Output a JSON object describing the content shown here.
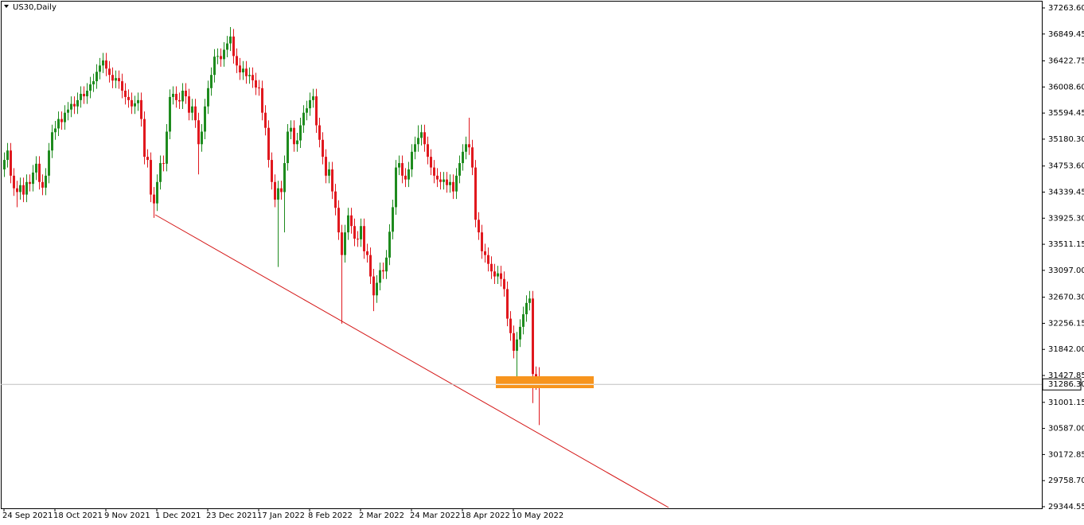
{
  "chart_data": {
    "type": "candlestick",
    "title": "US30,Daily",
    "up_color": "#1e8b1e",
    "down_color": "#e0181e",
    "ylim": [
      29319,
      37377
    ],
    "yticks": [
      {
        "value": 37263.6,
        "label": "37263.60"
      },
      {
        "value": 36849.45,
        "label": "36849.45"
      },
      {
        "value": 36422.75,
        "label": "36422.75"
      },
      {
        "value": 36008.6,
        "label": "36008.60"
      },
      {
        "value": 35594.45,
        "label": "35594.45"
      },
      {
        "value": 35180.3,
        "label": "35180.30"
      },
      {
        "value": 34753.6,
        "label": "34753.60"
      },
      {
        "value": 34339.45,
        "label": "34339.45"
      },
      {
        "value": 33925.3,
        "label": "33925.30"
      },
      {
        "value": 33511.15,
        "label": "33511.15"
      },
      {
        "value": 33097,
        "label": "33097.00"
      },
      {
        "value": 32670.3,
        "label": "32670.30"
      },
      {
        "value": 32256.15,
        "label": "32256.15"
      },
      {
        "value": 31842,
        "label": "31842.00"
      },
      {
        "value": 31427.85,
        "label": "31427.85"
      },
      {
        "value": 31001.15,
        "label": "31001.15"
      },
      {
        "value": 30587,
        "label": "30587.00"
      },
      {
        "value": 30172.85,
        "label": "30172.85"
      },
      {
        "value": 29758.7,
        "label": "29758.70"
      },
      {
        "value": 29344.55,
        "label": "29344.55"
      }
    ],
    "current_price": {
      "value": 31286.3,
      "label": "31286.30"
    },
    "categories": [
      "24 Sep 2021",
      null,
      null,
      null,
      null,
      null,
      null,
      null,
      null,
      null,
      null,
      null,
      null,
      null,
      null,
      null,
      "18 Oct 2021",
      null,
      null,
      null,
      null,
      null,
      null,
      null,
      null,
      null,
      null,
      null,
      null,
      null,
      null,
      null,
      "9 Nov 2021",
      null,
      null,
      null,
      null,
      null,
      null,
      null,
      null,
      null,
      null,
      null,
      null,
      null,
      null,
      null,
      "1 Dec 2021",
      null,
      null,
      null,
      null,
      null,
      null,
      null,
      null,
      null,
      null,
      null,
      null,
      null,
      null,
      null,
      "23 Dec 2021",
      null,
      null,
      null,
      null,
      null,
      null,
      null,
      null,
      null,
      null,
      null,
      null,
      null,
      null,
      null,
      "17 Jan 2022",
      null,
      null,
      null,
      null,
      null,
      null,
      null,
      null,
      null,
      null,
      null,
      null,
      null,
      null,
      null,
      "8 Feb 2022",
      null,
      null,
      null,
      null,
      null,
      null,
      null,
      null,
      null,
      null,
      null,
      null,
      null,
      null,
      null,
      "2 Mar 2022",
      null,
      null,
      null,
      null,
      null,
      null,
      null,
      null,
      null,
      null,
      null,
      null,
      null,
      null,
      null,
      "24 Mar 2022",
      null,
      null,
      null,
      null,
      null,
      null,
      null,
      null,
      null,
      null,
      null,
      null,
      null,
      null,
      null,
      "18 Apr 2022",
      null,
      null,
      null,
      null,
      null,
      null,
      null,
      null,
      null,
      null,
      null,
      null,
      null,
      null,
      null,
      "10 May 2022",
      null,
      null,
      null,
      null,
      null,
      null,
      null,
      null
    ],
    "open": [
      34700,
      34850,
      35000,
      34600,
      34400,
      34340,
      34450,
      34300,
      34500,
      34470,
      34650,
      34790,
      34500,
      34410,
      34600,
      35000,
      35290,
      35350,
      35500,
      35450,
      35600,
      35650,
      35740,
      35700,
      35800,
      35900,
      35860,
      35950,
      36050,
      36100,
      36250,
      36350,
      36430,
      36300,
      36200,
      36110,
      36150,
      36100,
      35950,
      35850,
      35800,
      35700,
      35750,
      35800,
      35500,
      34900,
      34850,
      34300,
      34160,
      34500,
      34800,
      34790,
      35300,
      35850,
      35900,
      35800,
      35780,
      35950,
      35860,
      35600,
      35700,
      35480,
      35100,
      35300,
      35700,
      35990,
      36200,
      36490,
      36500,
      36450,
      36600,
      36700,
      36810,
      36500,
      36350,
      36240,
      36300,
      36180,
      36200,
      36114,
      36000,
      35990,
      35600,
      35360,
      34850,
      34500,
      34220,
      34400,
      34340,
      34800,
      35300,
      35360,
      35100,
      35160,
      35400,
      35600,
      35670,
      35800,
      35860,
      35400,
      35170,
      34900,
      34600,
      34700,
      34350,
      34090,
      33700,
      33340,
      33700,
      33970,
      33800,
      33600,
      33590,
      33800,
      33400,
      33340,
      33000,
      32700,
      32900,
      33100,
      33080,
      33300,
      33710,
      34100,
      34730,
      34800,
      34600,
      34540,
      34700,
      34980,
      35100,
      35200,
      35290,
      35100,
      34900,
      34730,
      34600,
      34540,
      34500,
      34540,
      34450,
      34500,
      34350,
      34600,
      34800,
      34980,
      35100,
      35050,
      34730,
      33900,
      33700,
      33400,
      33340,
      33200,
      33080,
      33000,
      33050,
      32960,
      32800,
      32330,
      32100,
      31820,
      32000,
      32200,
      32400,
      32580,
      32650,
      31450,
      31320
    ],
    "high": [
      34970,
      35120,
      35120,
      34720,
      34520,
      34570,
      34570,
      34620,
      34620,
      34770,
      34910,
      34910,
      34620,
      34720,
      35120,
      35410,
      35470,
      35620,
      35620,
      35720,
      35770,
      35860,
      35860,
      35920,
      36020,
      36020,
      36070,
      36170,
      36220,
      36370,
      36470,
      36550,
      36550,
      36420,
      36320,
      36270,
      36270,
      36220,
      36070,
      35970,
      35920,
      35870,
      35920,
      35920,
      35620,
      35020,
      34970,
      34420,
      34620,
      34920,
      34920,
      35420,
      35970,
      36020,
      36020,
      35920,
      36070,
      36070,
      35980,
      35820,
      35820,
      35600,
      35420,
      35820,
      36110,
      36320,
      36610,
      36620,
      36620,
      36720,
      36820,
      36960,
      36930,
      36620,
      36470,
      36420,
      36420,
      36320,
      36320,
      36234,
      36120,
      36110,
      35720,
      35480,
      34970,
      34620,
      34520,
      34520,
      34920,
      35420,
      35480,
      35480,
      35280,
      35520,
      35720,
      35790,
      35920,
      35980,
      35980,
      35520,
      35290,
      35020,
      34820,
      34820,
      34470,
      34210,
      33820,
      33820,
      34090,
      34090,
      33920,
      33720,
      33920,
      33920,
      33520,
      33460,
      33120,
      33020,
      33220,
      33220,
      33420,
      33830,
      34220,
      34850,
      34920,
      34920,
      34720,
      34820,
      35100,
      35220,
      35400,
      35410,
      35410,
      35220,
      35020,
      34850,
      34720,
      34660,
      34660,
      34660,
      34620,
      34620,
      34720,
      34920,
      35100,
      35220,
      35520,
      35170,
      34850,
      34020,
      33820,
      33520,
      33460,
      33320,
      33200,
      33170,
      33170,
      33080,
      32920,
      32450,
      32220,
      32120,
      32320,
      32520,
      32700,
      32770,
      32770,
      31570,
      31560
    ],
    "low": [
      34580,
      34730,
      34480,
      34280,
      34100,
      34220,
      34180,
      34180,
      34350,
      34350,
      34530,
      34380,
      34290,
      34290,
      34480,
      34880,
      35170,
      35230,
      35330,
      35330,
      35480,
      35530,
      35580,
      35580,
      35680,
      35740,
      35740,
      35830,
      35930,
      35980,
      36130,
      36230,
      36180,
      36080,
      35990,
      35990,
      35980,
      35830,
      35730,
      35680,
      35580,
      35580,
      35630,
      35380,
      34780,
      34730,
      34180,
      33930,
      34040,
      34380,
      34670,
      34670,
      35180,
      35730,
      35680,
      35660,
      35660,
      35740,
      35480,
      35480,
      35360,
      34620,
      34980,
      35180,
      35580,
      35870,
      36080,
      36370,
      36330,
      36330,
      36480,
      36580,
      36380,
      36230,
      36120,
      36120,
      36060,
      36060,
      35994,
      35880,
      35870,
      35480,
      35240,
      34730,
      34380,
      34100,
      33150,
      34220,
      33700,
      34680,
      35180,
      34980,
      34980,
      35040,
      35280,
      35480,
      35550,
      35680,
      35280,
      35050,
      34780,
      34480,
      34480,
      34230,
      33970,
      33580,
      32250,
      33220,
      33580,
      33680,
      33480,
      33470,
      33470,
      33280,
      33220,
      32880,
      32450,
      32580,
      32780,
      32960,
      32960,
      33180,
      33590,
      33980,
      34610,
      34480,
      34420,
      34420,
      34580,
      34860,
      34980,
      35080,
      34980,
      34780,
      34610,
      34480,
      34420,
      34380,
      34380,
      34330,
      34330,
      34230,
      34230,
      34480,
      34680,
      34860,
      34930,
      34610,
      33780,
      33580,
      33280,
      33220,
      33080,
      32960,
      32880,
      32880,
      32840,
      32680,
      32210,
      31980,
      31700,
      31400,
      31880,
      32080,
      32280,
      32460,
      30990,
      31200,
      30640
    ],
    "close": [
      34850,
      35000,
      34600,
      34400,
      34340,
      34450,
      34300,
      34500,
      34470,
      34650,
      34790,
      34500,
      34410,
      34600,
      35000,
      35290,
      35350,
      35500,
      35450,
      35600,
      35650,
      35740,
      35700,
      35800,
      35900,
      35860,
      35950,
      36050,
      36100,
      36250,
      36350,
      36430,
      36300,
      36200,
      36110,
      36150,
      36100,
      35950,
      35850,
      35800,
      35700,
      35750,
      35800,
      35500,
      34900,
      34850,
      34300,
      34160,
      34500,
      34800,
      34790,
      35300,
      35850,
      35900,
      35800,
      35780,
      35950,
      35860,
      35600,
      35700,
      35480,
      35100,
      35300,
      35700,
      35990,
      36200,
      36490,
      36500,
      36450,
      36600,
      36700,
      36810,
      36500,
      36350,
      36240,
      36300,
      36180,
      36200,
      36114,
      36000,
      35990,
      35600,
      35360,
      34850,
      34500,
      34220,
      34400,
      34340,
      34800,
      35300,
      35360,
      35100,
      35160,
      35400,
      35600,
      35670,
      35800,
      35860,
      35400,
      35170,
      34900,
      34600,
      34700,
      34350,
      34090,
      33700,
      33340,
      33700,
      33970,
      33800,
      33600,
      33590,
      33800,
      33400,
      33340,
      33000,
      32700,
      32900,
      33100,
      33080,
      33300,
      33710,
      34100,
      34730,
      34800,
      34600,
      34540,
      34700,
      34980,
      35100,
      35200,
      35290,
      35100,
      34900,
      34730,
      34600,
      34540,
      34500,
      34540,
      34450,
      34500,
      34350,
      34600,
      34800,
      34980,
      35100,
      35050,
      34730,
      33900,
      33700,
      33400,
      33340,
      33200,
      33080,
      33000,
      33050,
      32960,
      32800,
      32330,
      32100,
      31820,
      32000,
      32200,
      32400,
      32580,
      32650,
      31450,
      31320,
      31286.3
    ]
  }
}
